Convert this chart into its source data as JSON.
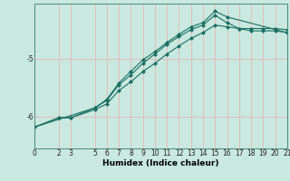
{
  "xlabel": "Humidex (Indice chaleur)",
  "bg_color": "#c8e8e0",
  "line_color": "#1a6e62",
  "grid_color": "#e8b8b8",
  "xmin": 0,
  "xmax": 21,
  "ymin": -6.55,
  "ymax": -4.05,
  "yticks": [
    -6,
    -5
  ],
  "xticks": [
    0,
    2,
    3,
    5,
    6,
    7,
    8,
    9,
    10,
    11,
    12,
    13,
    14,
    15,
    16,
    17,
    18,
    19,
    20,
    21
  ],
  "line1_x": [
    0,
    2,
    3,
    5,
    6,
    7,
    8,
    9,
    10,
    11,
    12,
    13,
    14,
    15,
    16,
    17,
    18,
    19,
    20,
    21
  ],
  "line1_y": [
    -6.18,
    -6.02,
    -6.02,
    -5.88,
    -5.78,
    -5.55,
    -5.4,
    -5.22,
    -5.08,
    -4.92,
    -4.78,
    -4.65,
    -4.55,
    -4.42,
    -4.45,
    -4.48,
    -4.48,
    -4.48,
    -4.48,
    -4.5
  ],
  "line2_x": [
    0,
    2,
    3,
    5,
    6,
    7,
    8,
    9,
    10,
    11,
    12,
    13,
    14,
    15,
    16,
    17,
    18,
    19,
    20,
    21
  ],
  "line2_y": [
    -6.18,
    -6.02,
    -6.02,
    -5.85,
    -5.72,
    -5.45,
    -5.28,
    -5.08,
    -4.92,
    -4.75,
    -4.62,
    -4.5,
    -4.42,
    -4.25,
    -4.38,
    -4.48,
    -4.52,
    -4.52,
    -4.52,
    -4.55
  ],
  "line3_x": [
    0,
    5,
    6,
    7,
    8,
    9,
    10,
    11,
    12,
    13,
    14,
    15,
    16,
    21
  ],
  "line3_y": [
    -6.18,
    -5.85,
    -5.7,
    -5.42,
    -5.22,
    -5.02,
    -4.88,
    -4.72,
    -4.58,
    -4.45,
    -4.38,
    -4.18,
    -4.28,
    -4.55
  ],
  "marker": "D",
  "markersize": 2.5,
  "linewidth": 0.8,
  "tick_fontsize": 5.5,
  "label_fontsize": 6.5
}
